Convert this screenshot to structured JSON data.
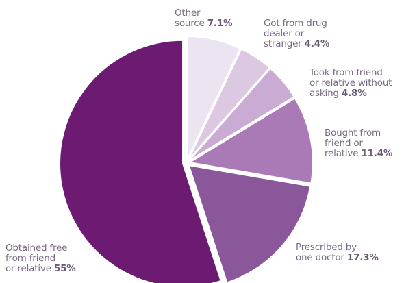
{
  "chart_data": {
    "type": "pie",
    "slices": [
      {
        "label_lines": [
          "Other",
          "source"
        ],
        "value": 7.1,
        "value_text": "7.1%",
        "color": "#ece4f0"
      },
      {
        "label_lines": [
          "Got from drug",
          "dealer or",
          "stranger"
        ],
        "value": 4.4,
        "value_text": "4.4%",
        "color": "#dcc9e1"
      },
      {
        "label_lines": [
          "Took from friend",
          "or relative without",
          "asking"
        ],
        "value": 4.8,
        "value_text": "4.8%",
        "color": "#c9abd3"
      },
      {
        "label_lines": [
          "Bought from",
          "friend or",
          "relative"
        ],
        "value": 11.4,
        "value_text": "11.4%",
        "color": "#a97ab5"
      },
      {
        "label_lines": [
          "Prescribed by",
          "one doctor"
        ],
        "value": 17.3,
        "value_text": "17.3%",
        "color": "#8b579b"
      },
      {
        "label_lines": [
          "Obtained free",
          "from friend",
          "or relative"
        ],
        "value": 55,
        "value_text": "55%",
        "color": "#6d1a73"
      }
    ]
  }
}
